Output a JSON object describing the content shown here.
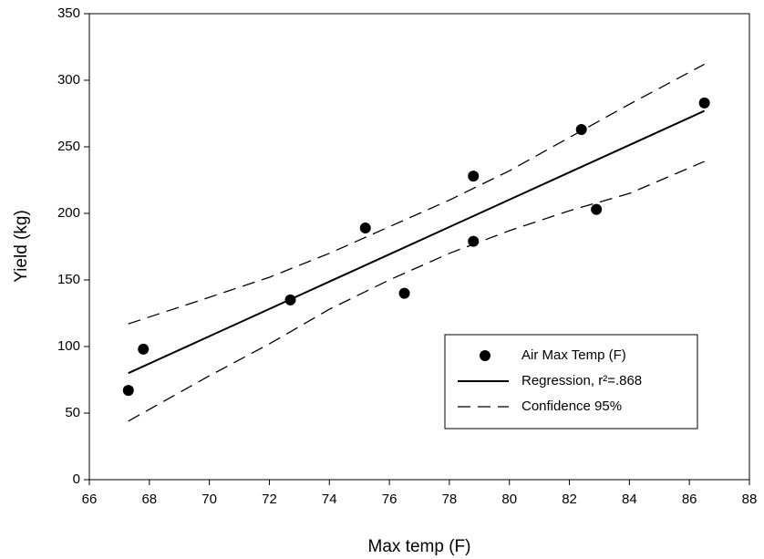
{
  "chart_data": {
    "type": "scatter",
    "x_label": "Max temp (F)",
    "y_label": "Yield (kg)",
    "xlim": [
      66,
      88
    ],
    "xticks": [
      66,
      68,
      70,
      72,
      74,
      76,
      78,
      80,
      82,
      84,
      86,
      88
    ],
    "ylim": [
      0,
      350
    ],
    "yticks": [
      0,
      50,
      100,
      150,
      200,
      250,
      300,
      350
    ],
    "grid": false,
    "legend": "lower right",
    "series": [
      {
        "name": "Air Max Temp (F)",
        "kind": "points",
        "color": "#000000",
        "x": [
          67.3,
          67.8,
          72.7,
          75.2,
          76.5,
          78.8,
          78.8,
          82.4,
          82.9,
          86.5
        ],
        "values": [
          67,
          98,
          135,
          189,
          140,
          228,
          179,
          263,
          203,
          283
        ]
      },
      {
        "name": "Regression, r²=.868",
        "kind": "line",
        "color": "#000000",
        "x": [
          67.3,
          86.5
        ],
        "values": [
          80,
          277
        ]
      },
      {
        "name": "Confidence 95%",
        "kind": "band",
        "color": "#000000",
        "x": [
          67.3,
          70,
          72,
          74,
          76,
          78,
          80,
          82,
          84,
          86.5
        ],
        "upper": [
          117,
          137,
          152,
          170,
          190,
          210,
          232,
          257,
          282,
          312
        ],
        "lower": [
          44,
          78,
          102,
          128,
          150,
          170,
          187,
          202,
          215,
          239
        ]
      }
    ]
  }
}
